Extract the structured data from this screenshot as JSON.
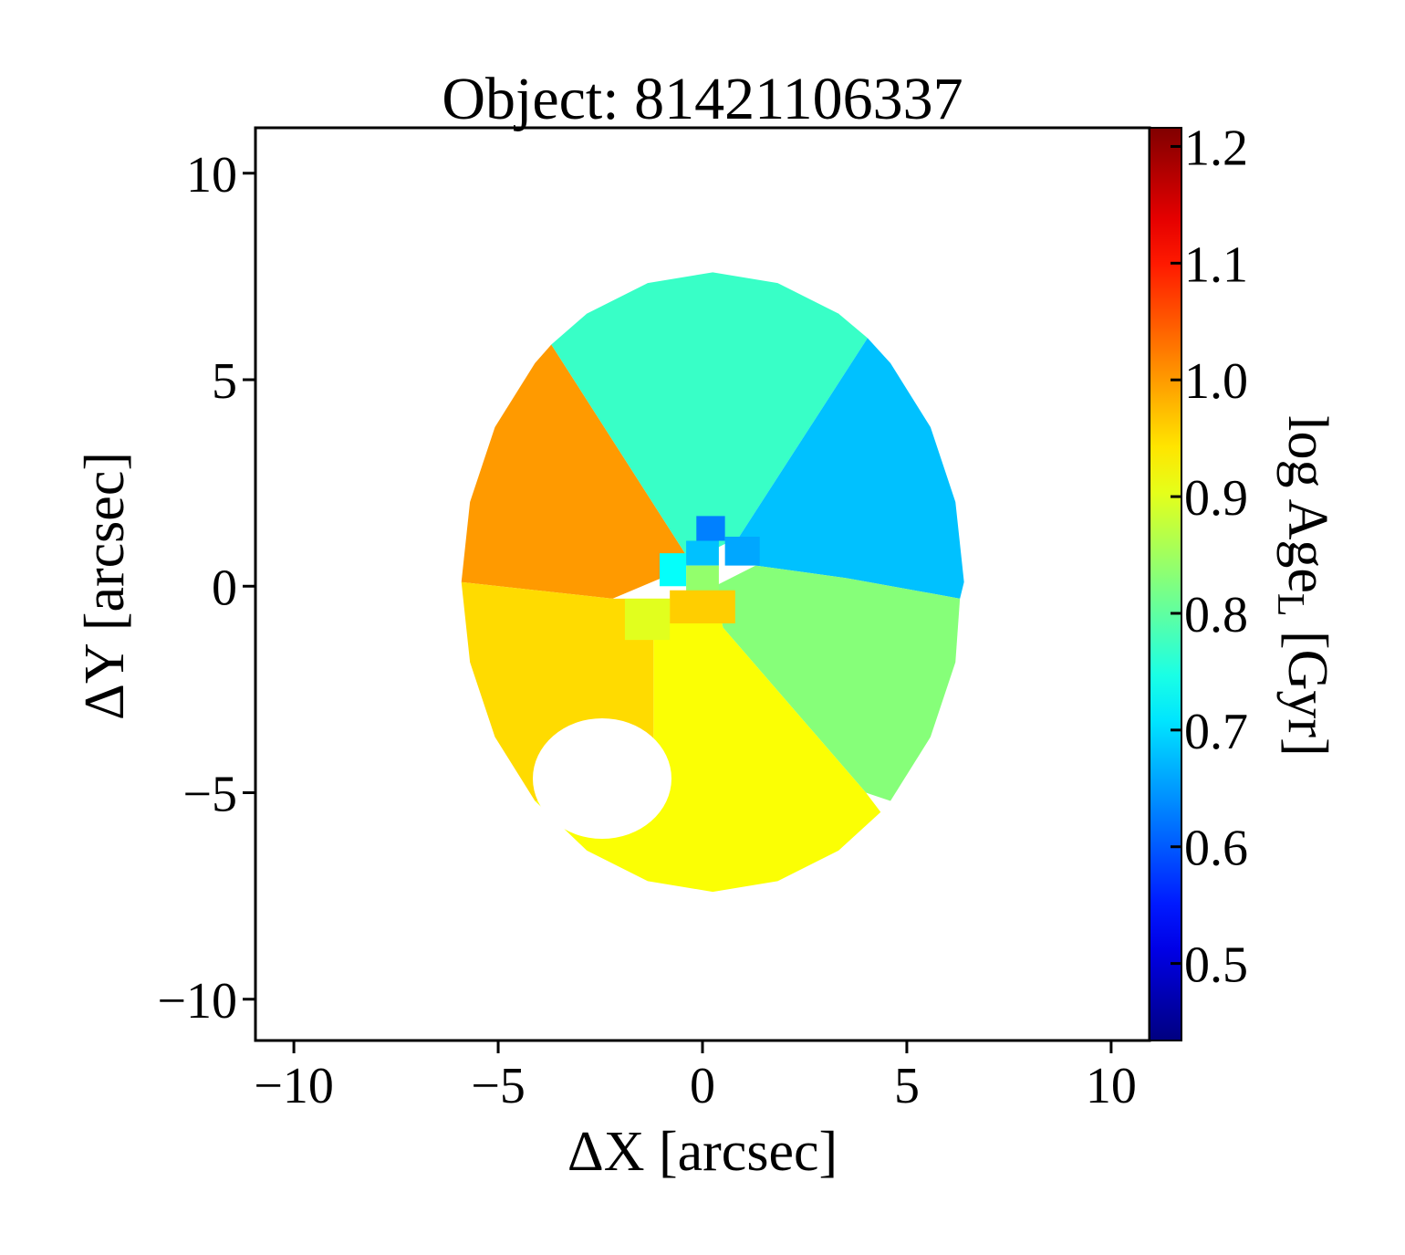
{
  "chart_data": {
    "type": "map",
    "title": "Object: 81421106337",
    "x_label": "ΔX [arcsec]",
    "y_label": "ΔY [arcsec]",
    "colorbar_label": [
      "log Age",
      "L",
      " [Gyr]"
    ],
    "colormap": "jet",
    "xlim": [
      -10.94,
      10.94
    ],
    "ylim": [
      -11.0,
      11.1
    ],
    "xticks": [
      {
        "value": -10,
        "label": "−10"
      },
      {
        "value": -5,
        "label": "−5"
      },
      0,
      5,
      10
    ],
    "yticks": [
      {
        "value": -10,
        "label": "−10"
      },
      {
        "value": -5,
        "label": "−5"
      },
      0,
      5,
      10
    ],
    "clim": [
      0.434,
      1.216
    ],
    "cticks": [
      0.5,
      0.6,
      0.7,
      0.8,
      0.9,
      {
        "value": 1.0,
        "label": "1.0"
      },
      1.1,
      1.2
    ],
    "bins": [
      {
        "value": 1.0,
        "x": [
          -0.3,
          -3.7,
          -4.1,
          -5.08,
          -5.69,
          -5.9,
          -2.2,
          -1.0
        ],
        "y": [
          0.6,
          5.85,
          5.4,
          3.85,
          2.04,
          0.1,
          -0.3,
          0.2
        ]
      },
      {
        "value": 0.77,
        "x": [
          -0.3,
          0.9,
          4.04,
          3.33,
          1.84,
          0.25,
          -1.34,
          -2.83,
          -3.7
        ],
        "y": [
          0.6,
          1.2,
          6.01,
          6.6,
          7.34,
          7.6,
          7.34,
          6.6,
          5.85
        ]
      },
      {
        "value": 0.68,
        "x": [
          0.9,
          4.04,
          4.6,
          5.58,
          6.19,
          6.4,
          6.3,
          3.5,
          1.3
        ],
        "y": [
          1.2,
          6.01,
          5.4,
          3.85,
          2.04,
          0.1,
          -0.3,
          0.2,
          0.5
        ]
      },
      {
        "value": 0.83,
        "x": [
          1.3,
          3.5,
          6.3,
          6.19,
          5.58,
          4.6,
          4.0,
          0.5,
          0.3
        ],
        "y": [
          0.5,
          0.2,
          -0.3,
          -1.84,
          -3.65,
          -5.2,
          -5.0,
          -1.0,
          0.0
        ]
      },
      {
        "value": 0.92,
        "x": [
          0.3,
          0.5,
          4.0,
          4.36,
          3.33,
          1.84,
          0.25,
          -1.34,
          -2.83,
          -4.1,
          -1.2,
          -1.2,
          -0.8
        ],
        "y": [
          0.0,
          -1.0,
          -5.0,
          -5.47,
          -6.4,
          -7.14,
          -7.4,
          -7.14,
          -6.4,
          -5.2,
          -5.0,
          -1.0,
          -0.3
        ]
      },
      {
        "value": 0.95,
        "x": [
          -0.8,
          -1.2,
          -1.2,
          -4.1,
          -5.08,
          -5.69,
          -5.9,
          -2.2
        ],
        "y": [
          -0.3,
          -1.0,
          -5.0,
          -5.2,
          -3.65,
          -1.84,
          0.1,
          -0.3
        ]
      },
      {
        "value": 0.63,
        "x": [
          -0.15,
          0.55,
          0.55,
          -0.15
        ],
        "y": [
          1.7,
          1.7,
          1.1,
          1.1
        ]
      },
      {
        "value": 0.66,
        "x": [
          0.55,
          1.4,
          1.4,
          0.55
        ],
        "y": [
          1.2,
          1.2,
          0.5,
          0.5
        ]
      },
      {
        "value": 0.68,
        "x": [
          -0.4,
          0.4,
          0.4,
          -0.4
        ],
        "y": [
          1.1,
          1.1,
          0.5,
          0.5
        ]
      },
      {
        "value": 0.73,
        "x": [
          -1.05,
          -0.4,
          -0.4,
          -1.05
        ],
        "y": [
          0.8,
          0.8,
          0.0,
          0.0
        ]
      },
      {
        "value": 0.84,
        "x": [
          -0.4,
          0.4,
          0.4,
          -0.4
        ],
        "y": [
          0.5,
          0.5,
          -0.2,
          -0.2
        ]
      },
      {
        "value": 0.96,
        "x": [
          -0.8,
          0.8,
          0.8,
          -0.8
        ],
        "y": [
          -0.1,
          -0.1,
          -0.9,
          -0.9
        ]
      },
      {
        "value": 0.9,
        "x": [
          -1.9,
          -0.8,
          -0.8,
          -1.9
        ],
        "y": [
          -0.3,
          -0.3,
          -1.3,
          -1.3
        ]
      }
    ]
  }
}
